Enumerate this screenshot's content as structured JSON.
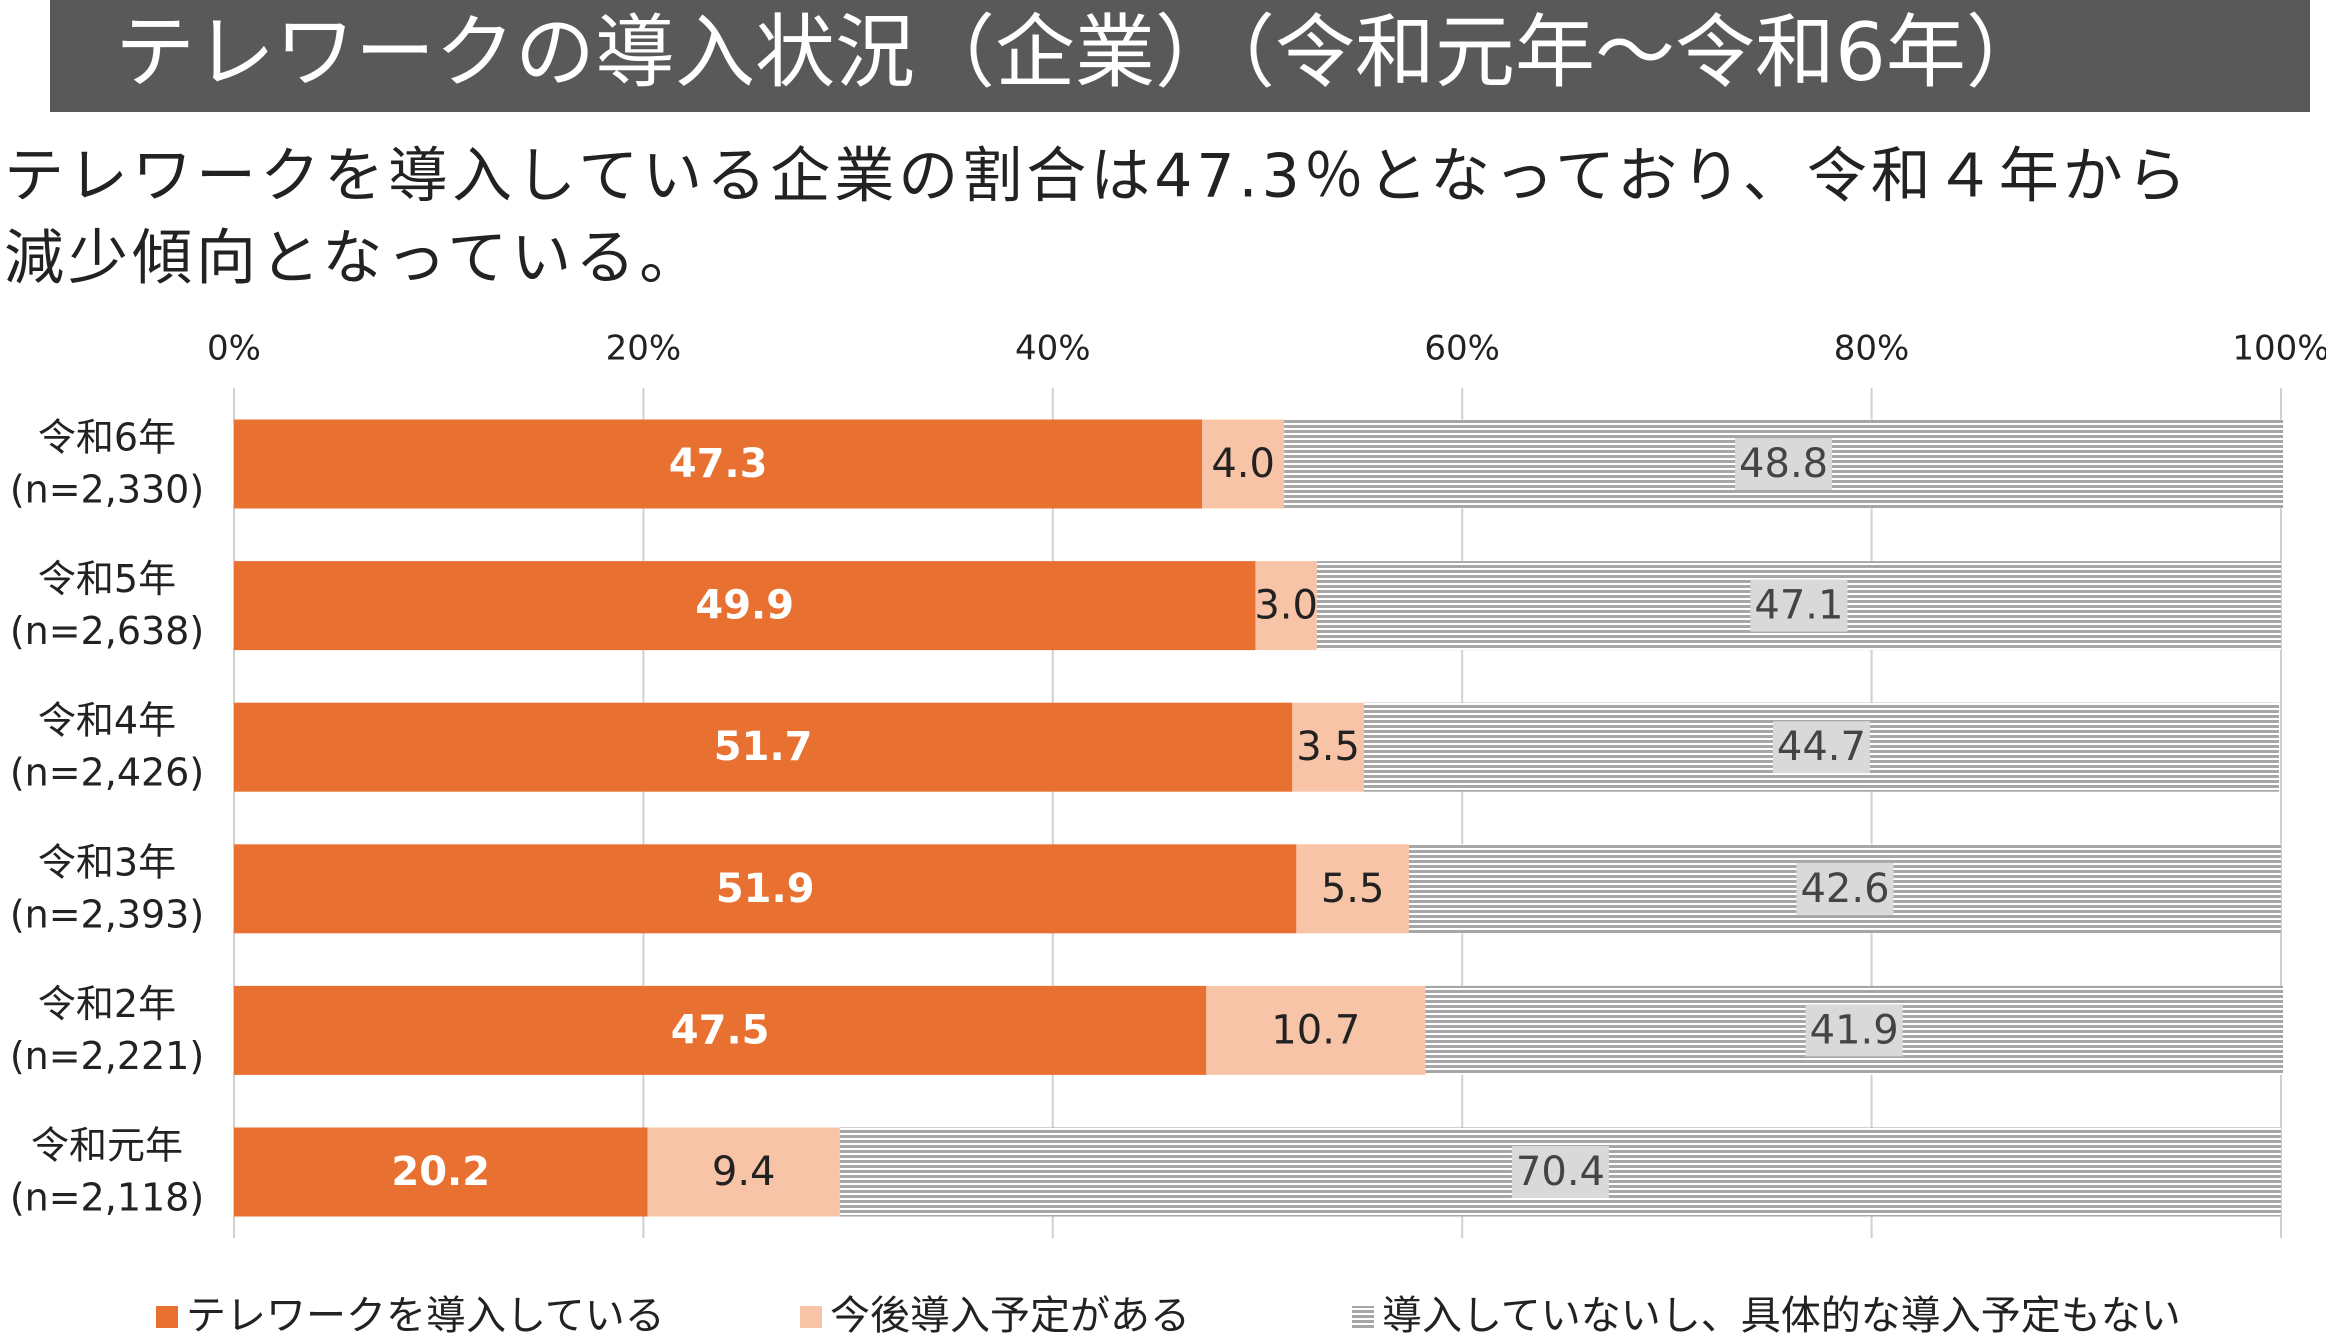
{
  "chart_data": {
    "type": "stacked-bar-horizontal",
    "title": "テレワークの導入状況（企業）（令和元年～令和6年）",
    "subtitle": [
      "テレワークを導入している企業の割合は47.3％となっており、令和４年から",
      "減少傾向となっている。"
    ],
    "categories": [
      [
        "令和6年",
        "(n=2,330)"
      ],
      [
        "令和5年",
        "(n=2,638)"
      ],
      [
        "令和4年",
        "(n=2,426)"
      ],
      [
        "令和3年",
        "(n=2,393)"
      ],
      [
        "令和2年",
        "(n=2,221)"
      ],
      [
        "令和元年",
        "(n=2,118)"
      ]
    ],
    "series": [
      {
        "name": "テレワークを導入している",
        "color": "#e87131",
        "values": [
          47.3,
          49.9,
          51.7,
          51.9,
          47.5,
          20.2
        ],
        "value_labels": [
          "47.3",
          "49.9",
          "51.7",
          "51.9",
          "47.5",
          "20.2"
        ]
      },
      {
        "name": "今後導入予定がある",
        "color": "#f8c4a7",
        "values": [
          4,
          3,
          3.5,
          5.5,
          10.7,
          9.4
        ],
        "value_labels": [
          "4.0",
          "3.0",
          "3.5",
          "5.5",
          "10.7",
          "9.4"
        ]
      },
      {
        "name": "導入していないし、具体的な導入予定もない",
        "color": "#a6a6a6",
        "hatch": true,
        "values": [
          48.8,
          47.1,
          44.7,
          42.6,
          41.9,
          70.4
        ],
        "value_labels": [
          "48.8",
          "47.1",
          "44.7",
          "42.6",
          "41.9",
          "70.4"
        ]
      }
    ],
    "xlim": [
      0,
      100
    ],
    "xticks": [
      {
        "value": 0,
        "label": "0%"
      },
      {
        "value": 20,
        "label": "20%"
      },
      {
        "value": 40,
        "label": "40%"
      },
      {
        "value": 60,
        "label": "60%"
      },
      {
        "value": 80,
        "label": "80%"
      },
      {
        "value": 100,
        "label": "100%"
      }
    ],
    "grid": true
  }
}
